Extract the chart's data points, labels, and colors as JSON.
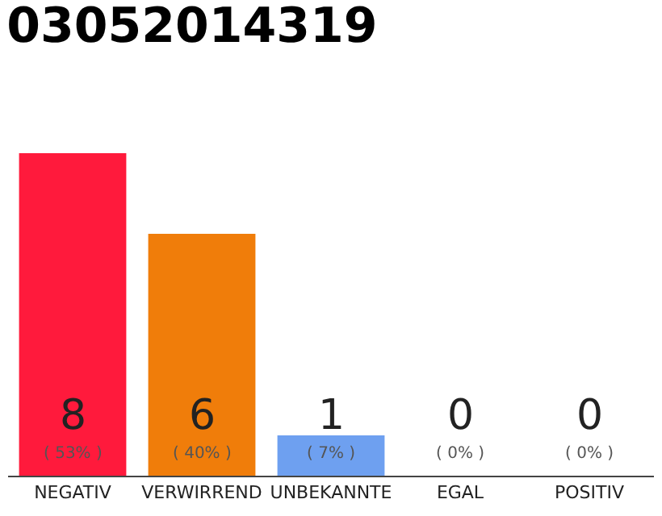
{
  "chart_data": {
    "type": "bar",
    "title": "03052014319",
    "categories": [
      "NEGATIV",
      "VERWIRREND",
      "UNBEKANNTE",
      "EGAL",
      "POSITIV"
    ],
    "values": [
      8,
      6,
      1,
      0,
      0
    ],
    "colors": [
      "#ff1a3c",
      "#f07d0a",
      "#6ea0f0",
      "#cccccc",
      "#cccccc"
    ],
    "ylim": [
      0,
      8
    ],
    "value_labels": [
      "8\n( 53% )",
      "6\n( 40% )",
      "1\n( 7% )",
      "0\n( 0% )",
      "0\n( 0% )"
    ],
    "tick_labels": "x",
    "grid": false,
    "legend": false
  }
}
